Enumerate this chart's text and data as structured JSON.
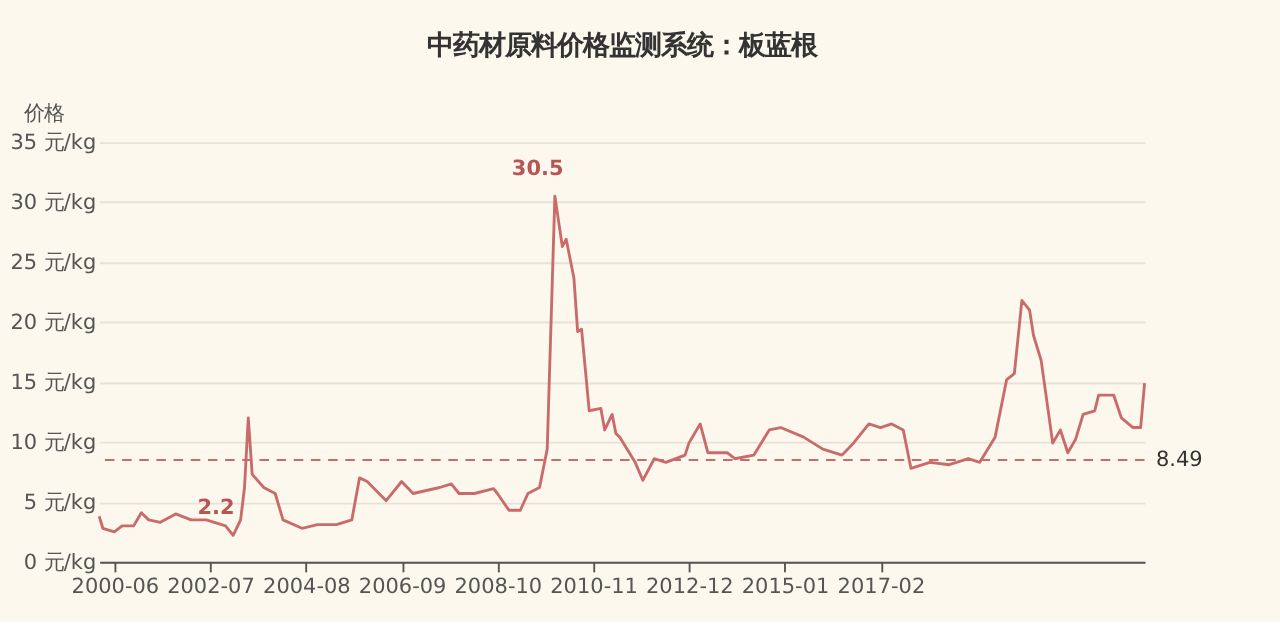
{
  "chart_data": {
    "type": "line",
    "title": "中药材原料价格监测系统：板蓝根",
    "ylabel": "价格",
    "x": [
      "2000-02",
      "2000-03",
      "2000-06",
      "2000-08",
      "2000-11",
      "2001-01",
      "2001-03",
      "2001-06",
      "2001-10",
      "2002-02",
      "2002-06",
      "2002-11",
      "2003-01",
      "2003-03",
      "2003-04",
      "2003-05",
      "2003-06",
      "2003-09",
      "2003-12",
      "2004-02",
      "2004-07",
      "2004-11",
      "2005-04",
      "2005-08",
      "2005-10",
      "2005-12",
      "2006-05",
      "2006-09",
      "2006-12",
      "2007-07",
      "2007-10",
      "2007-12",
      "2008-04",
      "2008-09",
      "2008-10",
      "2009-01",
      "2009-04",
      "2009-06",
      "2009-09",
      "2009-11",
      "2010-01",
      "2010-03",
      "2010-04",
      "2010-06",
      "2010-07",
      "2010-08",
      "2010-10",
      "2011-01",
      "2011-02",
      "2011-04",
      "2011-05",
      "2011-06",
      "2011-10",
      "2011-12",
      "2012-03",
      "2012-06",
      "2012-11",
      "2012-12",
      "2013-03",
      "2013-05",
      "2013-10",
      "2013-12",
      "2014-05",
      "2014-09",
      "2014-12",
      "2015-06",
      "2015-11",
      "2016-04",
      "2016-07",
      "2016-11",
      "2017-02",
      "2017-05",
      "2017-08",
      "2017-10",
      "2018-03",
      "2018-08",
      "2019-01",
      "2019-04",
      "2019-08",
      "2019-11",
      "2020-01",
      "2020-03",
      "2020-05",
      "2020-06",
      "2020-08",
      "2020-11",
      "2021-01",
      "2021-03",
      "2021-05",
      "2021-07",
      "2021-10",
      "2021-11",
      "2022-03",
      "2022-05",
      "2022-08",
      "2022-10",
      "2022-11"
    ],
    "series": [
      {
        "color": "#c96b6b",
        "values": [
          3.8,
          2.8,
          2.5,
          3.0,
          3.0,
          4.1,
          3.5,
          3.3,
          4.0,
          3.5,
          3.5,
          3.0,
          2.2,
          3.5,
          6.2,
          12.0,
          7.3,
          6.2,
          5.7,
          3.5,
          2.8,
          3.1,
          3.1,
          3.5,
          7.0,
          6.7,
          5.1,
          6.7,
          5.7,
          6.2,
          6.5,
          5.7,
          5.7,
          6.1,
          5.7,
          4.3,
          4.3,
          5.7,
          6.2,
          9.4,
          30.5,
          26.3,
          26.9,
          23.7,
          19.2,
          19.4,
          12.6,
          12.8,
          11.0,
          12.3,
          10.7,
          10.4,
          8.3,
          6.8,
          8.6,
          8.3,
          8.9,
          9.9,
          11.5,
          9.1,
          9.1,
          8.6,
          8.9,
          11.0,
          11.2,
          10.4,
          9.4,
          8.9,
          9.9,
          11.5,
          11.2,
          11.5,
          11.0,
          7.8,
          8.3,
          8.1,
          8.6,
          8.3,
          10.4,
          15.2,
          15.7,
          21.8,
          21.0,
          18.9,
          16.8,
          9.9,
          11.0,
          9.1,
          10.2,
          12.3,
          12.6,
          13.9,
          13.9,
          12.0,
          11.2,
          11.2,
          14.9
        ]
      }
    ],
    "xlim": [
      "2000-02",
      "2022-11"
    ],
    "xticks": [
      "2000-06",
      "2002-07",
      "2004-08",
      "2006-09",
      "2008-10",
      "2010-11",
      "2012-12",
      "2015-01",
      "2017-02"
    ],
    "ylim": [
      0,
      35
    ],
    "yticks": [
      {
        "value": 0,
        "label": "0 元/kg"
      },
      {
        "value": 5,
        "label": "5 元/kg"
      },
      {
        "value": 10,
        "label": "10 元/kg"
      },
      {
        "value": 15,
        "label": "15 元/kg"
      },
      {
        "value": 20,
        "label": "20 元/kg"
      },
      {
        "value": 25,
        "label": "25 元/kg"
      },
      {
        "value": 30,
        "label": "30 元/kg"
      },
      {
        "value": 35,
        "label": "35 元/kg"
      }
    ],
    "grid": "y",
    "marker": "none",
    "line_style": "solid",
    "ref_lines": [
      {
        "axis": "y",
        "value": 8.49,
        "label": "8.49",
        "line_style": "dashed",
        "color": "#c96b6b"
      }
    ],
    "annotations": [
      {
        "text": "30.5",
        "x": "2010-01",
        "y": 30.5
      },
      {
        "text": "2.2",
        "x": "2003-01",
        "y": 2.2
      }
    ]
  }
}
